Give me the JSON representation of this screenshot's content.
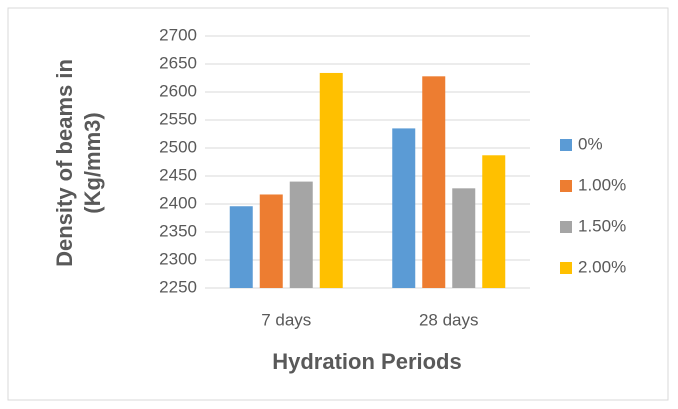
{
  "chart_data": {
    "type": "bar",
    "x_label": "Hydration Periods",
    "y_label": [
      "Density of beams in",
      "(Kg/mm3)"
    ],
    "categories": [
      "7 days",
      "28 days"
    ],
    "series": [
      {
        "name": "0%",
        "color": "#5b9bd5",
        "values": [
          2396,
          2535
        ]
      },
      {
        "name": "1.00%",
        "color": "#ed7d31",
        "values": [
          2417,
          2628
        ]
      },
      {
        "name": "1.50%",
        "color": "#a5a5a5",
        "values": [
          2440,
          2428
        ]
      },
      {
        "name": "2.00%",
        "color": "#ffc000",
        "values": [
          2634,
          2487
        ]
      }
    ],
    "ylim": [
      2250,
      2700
    ],
    "yticks": [
      2250,
      2300,
      2350,
      2400,
      2450,
      2500,
      2550,
      2600,
      2650,
      2700
    ],
    "grid": true,
    "legend": "right"
  }
}
